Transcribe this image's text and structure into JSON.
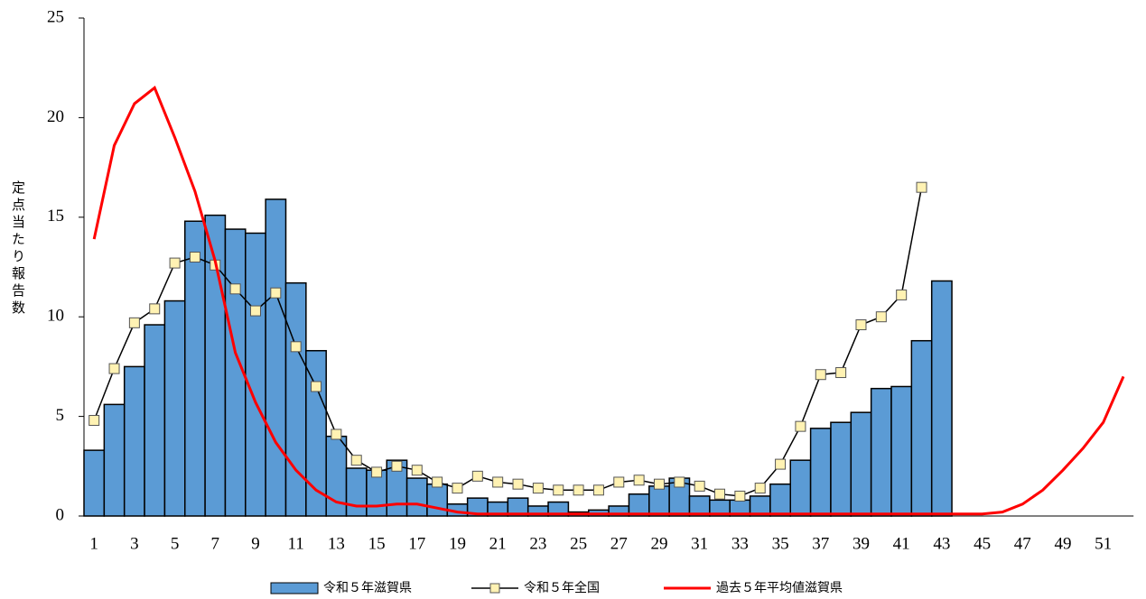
{
  "chart_data": {
    "type": "bar",
    "ylabel": "定点当たり報告数",
    "categories": [
      1,
      null,
      3,
      null,
      5,
      null,
      7,
      null,
      9,
      null,
      11,
      null,
      13,
      null,
      15,
      null,
      17,
      null,
      19,
      null,
      21,
      null,
      23,
      null,
      25,
      null,
      27,
      null,
      29,
      null,
      31,
      null,
      33,
      null,
      35,
      null,
      37,
      null,
      39,
      null,
      41,
      null,
      43,
      null,
      45,
      null,
      47,
      null,
      49,
      null,
      51,
      null
    ],
    "ylim": [
      0,
      25
    ],
    "yticks": [
      0,
      5,
      10,
      15,
      20,
      25
    ],
    "series": [
      {
        "name": "令和５年滋賀県",
        "type": "bar",
        "color": "#5b9bd5",
        "values": [
          3.3,
          5.6,
          7.5,
          9.6,
          10.8,
          14.8,
          15.1,
          14.4,
          14.2,
          15.9,
          11.7,
          8.3,
          4.0,
          2.4,
          2.3,
          2.8,
          1.9,
          1.6,
          0.6,
          0.9,
          0.7,
          0.9,
          0.5,
          0.7,
          0.2,
          0.3,
          0.5,
          1.1,
          1.5,
          1.9,
          1.0,
          0.8,
          0.8,
          1.0,
          1.6,
          2.8,
          4.4,
          4.7,
          5.2,
          6.4,
          6.5,
          8.8,
          11.8,
          null,
          null,
          null,
          null,
          null,
          null,
          null,
          null,
          null
        ]
      },
      {
        "name": "令和５年全国",
        "type": "line",
        "color": "#000000",
        "marker": "square",
        "marker_color": "#fff2b3",
        "values": [
          4.8,
          7.4,
          9.7,
          10.4,
          12.7,
          13.0,
          12.6,
          11.4,
          10.3,
          11.2,
          8.5,
          6.5,
          4.1,
          2.8,
          2.2,
          2.5,
          2.3,
          1.7,
          1.4,
          2.0,
          1.7,
          1.6,
          1.4,
          1.3,
          1.3,
          1.3,
          1.7,
          1.8,
          1.6,
          1.7,
          1.5,
          1.1,
          1.0,
          1.4,
          2.6,
          4.5,
          7.1,
          7.2,
          9.6,
          10.0,
          11.1,
          16.5,
          null,
          null,
          null,
          null,
          null,
          null,
          null,
          null,
          null,
          null
        ]
      },
      {
        "name": "過去５年平均値滋賀県",
        "type": "line",
        "color": "#ff0000",
        "values": [
          13.9,
          18.6,
          20.7,
          21.5,
          19.0,
          16.3,
          12.8,
          8.2,
          5.7,
          3.7,
          2.3,
          1.3,
          0.7,
          0.5,
          0.5,
          0.6,
          0.6,
          0.4,
          0.2,
          0.1,
          0.1,
          0.1,
          0.1,
          0.1,
          0.1,
          0.1,
          0.1,
          0.1,
          0.1,
          0.1,
          0.1,
          0.1,
          0.1,
          0.1,
          0.1,
          0.1,
          0.1,
          0.1,
          0.1,
          0.1,
          0.1,
          0.1,
          0.1,
          0.1,
          0.1,
          0.2,
          0.6,
          1.3,
          2.3,
          3.4,
          4.7,
          7.0
        ]
      }
    ]
  }
}
